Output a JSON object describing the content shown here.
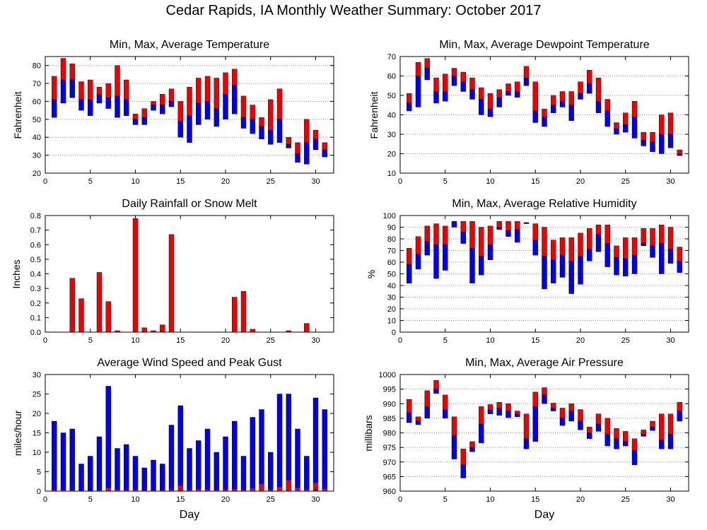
{
  "page": {
    "title": "Cedar Rapids, IA Monthly Weather Summary: October 2017"
  },
  "colors": {
    "red": "#ee0000",
    "blue": "#0000ee",
    "grid": "#999999"
  },
  "chart_data": [
    {
      "id": "temp",
      "type": "bar",
      "style": "range",
      "title": "Min, Max, Average Temperature",
      "xlabel": "",
      "ylabel": "Fahrenheit",
      "xlim": [
        0,
        32
      ],
      "ylim": [
        20,
        85
      ],
      "xticks": [
        0,
        5,
        10,
        15,
        20,
        25,
        30
      ],
      "yticks": [
        20,
        30,
        40,
        50,
        60,
        70,
        80
      ],
      "grid": true,
      "x": [
        1,
        2,
        3,
        4,
        5,
        6,
        7,
        8,
        9,
        10,
        11,
        12,
        13,
        14,
        15,
        16,
        17,
        18,
        19,
        20,
        21,
        22,
        23,
        24,
        25,
        26,
        27,
        28,
        29,
        30,
        31
      ],
      "min": [
        51,
        59,
        62,
        55,
        52,
        59,
        56,
        51,
        52,
        47,
        47,
        55,
        53,
        57,
        40,
        37,
        47,
        50,
        46,
        50,
        53,
        45,
        42,
        39,
        36,
        37,
        34,
        26,
        25,
        33,
        29
      ],
      "avg": [
        61,
        72,
        72,
        61,
        61,
        64,
        62,
        63,
        61,
        50,
        51,
        58,
        58,
        60,
        49,
        52,
        59,
        60,
        56,
        64,
        69,
        51,
        50,
        46,
        44,
        50,
        36,
        31,
        37,
        39,
        33
      ],
      "max": [
        74,
        84,
        81,
        71,
        72,
        68,
        70,
        80,
        72,
        53,
        56,
        60,
        64,
        67,
        60,
        68,
        73,
        74,
        73,
        76,
        78,
        63,
        58,
        51,
        61,
        67,
        40,
        37,
        50,
        44,
        37
      ]
    },
    {
      "id": "dewpoint",
      "type": "bar",
      "style": "range",
      "title": "Min, Max, Average Dewpoint Temperature",
      "xlabel": "",
      "ylabel": "Fahrenheit",
      "xlim": [
        0,
        32
      ],
      "ylim": [
        10,
        70
      ],
      "xticks": [
        0,
        5,
        10,
        15,
        20,
        25,
        30
      ],
      "yticks": [
        10,
        20,
        30,
        40,
        50,
        60,
        70
      ],
      "grid": true,
      "x": [
        1,
        2,
        3,
        4,
        5,
        6,
        7,
        8,
        9,
        10,
        11,
        12,
        13,
        14,
        15,
        16,
        17,
        18,
        19,
        20,
        21,
        22,
        23,
        24,
        25,
        26,
        27,
        28,
        29,
        30,
        31
      ],
      "min": [
        42,
        44,
        58,
        46,
        47,
        55,
        52,
        48,
        40,
        39,
        44,
        50,
        49,
        55,
        36,
        34,
        41,
        44,
        37,
        48,
        51,
        41,
        34,
        30,
        31,
        28,
        24,
        21,
        20,
        23,
        19
      ],
      "avg": [
        46,
        60,
        64,
        52,
        52,
        60,
        57,
        53,
        48,
        43,
        49,
        52,
        52,
        59,
        42,
        39,
        45,
        47,
        45,
        51,
        56,
        47,
        42,
        33,
        35,
        39,
        27,
        26,
        30,
        30,
        20
      ],
      "max": [
        51,
        67,
        69,
        59,
        61,
        64,
        62,
        59,
        54,
        51,
        53,
        56,
        57,
        65,
        57,
        43,
        50,
        52,
        52,
        57,
        63,
        59,
        48,
        36,
        41,
        47,
        31,
        31,
        40,
        41,
        22
      ]
    },
    {
      "id": "rain",
      "type": "bar",
      "style": "single",
      "title": "Daily Rainfall or Snow Melt",
      "xlabel": "",
      "ylabel": "Inches",
      "xlim": [
        0,
        32
      ],
      "ylim": [
        0,
        0.8
      ],
      "xticks": [
        0,
        5,
        10,
        15,
        20,
        25,
        30
      ],
      "yticks": [
        0,
        0.1,
        0.2,
        0.3,
        0.4,
        0.5,
        0.6,
        0.7,
        0.8
      ],
      "yticklabels": [
        "0.0",
        "0.1",
        "0.2",
        "0.3",
        "0.4",
        "0.5",
        "0.6",
        "0.7",
        "0.8"
      ],
      "grid": false,
      "x": [
        1,
        2,
        3,
        4,
        5,
        6,
        7,
        8,
        9,
        10,
        11,
        12,
        13,
        14,
        15,
        16,
        17,
        18,
        19,
        20,
        21,
        22,
        23,
        24,
        25,
        26,
        27,
        28,
        29,
        30,
        31
      ],
      "values": [
        0,
        0,
        0.37,
        0.23,
        0,
        0.41,
        0.21,
        0.01,
        0,
        0.78,
        0.03,
        0.01,
        0.05,
        0.67,
        0,
        0,
        0,
        0,
        0,
        0,
        0.24,
        0.28,
        0.02,
        0,
        0,
        0,
        0.01,
        0,
        0.06,
        0,
        0
      ]
    },
    {
      "id": "humidity",
      "type": "bar",
      "style": "range",
      "title": "Min, Max, Average Relative Humidity",
      "xlabel": "",
      "ylabel": "%",
      "xlim": [
        0,
        32
      ],
      "ylim": [
        0,
        100
      ],
      "xticks": [
        0,
        5,
        10,
        15,
        20,
        25,
        30
      ],
      "yticks": [
        0,
        10,
        20,
        30,
        40,
        50,
        60,
        70,
        80,
        90,
        100
      ],
      "grid": true,
      "x": [
        1,
        2,
        3,
        4,
        5,
        6,
        7,
        8,
        9,
        10,
        11,
        12,
        13,
        14,
        15,
        16,
        17,
        18,
        19,
        20,
        21,
        22,
        23,
        24,
        25,
        26,
        27,
        28,
        29,
        30,
        31
      ],
      "min": [
        42,
        54,
        66,
        46,
        53,
        90,
        76,
        42,
        49,
        62,
        88,
        82,
        77,
        93,
        66,
        37,
        42,
        47,
        33,
        41,
        61,
        69,
        56,
        49,
        48,
        50,
        74,
        64,
        50,
        59,
        51
      ],
      "avg": [
        58,
        67,
        78,
        75,
        75,
        95,
        86,
        72,
        65,
        75,
        90,
        87,
        88,
        94,
        79,
        65,
        62,
        66,
        61,
        65,
        71,
        84,
        76,
        64,
        63,
        66,
        76,
        74,
        76,
        71,
        61
      ],
      "max": [
        72,
        82,
        91,
        93,
        91,
        95,
        95,
        95,
        90,
        91,
        95,
        95,
        95,
        94,
        93,
        90,
        79,
        81,
        81,
        85,
        89,
        92,
        92,
        74,
        81,
        81,
        89,
        89,
        92,
        90,
        73
      ]
    },
    {
      "id": "wind",
      "type": "bar",
      "style": "wind",
      "title": "Average Wind Speed and Peak Gust",
      "xlabel": "Day",
      "ylabel": "miles/hour",
      "xlim": [
        0,
        32
      ],
      "ylim": [
        0,
        30
      ],
      "xticks": [
        0,
        5,
        10,
        15,
        20,
        25,
        30
      ],
      "yticks": [
        0,
        5,
        10,
        15,
        20,
        25,
        30
      ],
      "grid": false,
      "x": [
        1,
        2,
        3,
        4,
        5,
        6,
        7,
        8,
        9,
        10,
        11,
        12,
        13,
        14,
        15,
        16,
        17,
        18,
        19,
        20,
        21,
        22,
        23,
        24,
        25,
        26,
        27,
        28,
        29,
        30,
        31
      ],
      "gust": [
        18,
        15,
        16,
        7,
        9,
        14,
        27,
        11,
        12,
        9,
        6,
        8,
        7,
        17,
        22,
        11,
        13,
        16,
        10,
        14,
        18,
        9,
        19,
        21,
        10,
        25,
        25,
        16,
        9,
        24,
        21
      ],
      "avg_speed": [
        0.3,
        0.3,
        0.3,
        0.1,
        0.1,
        0.2,
        0.8,
        0.4,
        0.3,
        0.4,
        0.2,
        0.2,
        0.2,
        0.4,
        1.4,
        0.3,
        0.5,
        0.4,
        0.3,
        0.5,
        0.5,
        0.3,
        0.7,
        1.8,
        0.5,
        1.0,
        2.8,
        0.8,
        0.4,
        2.1,
        0.6
      ]
    },
    {
      "id": "pressure",
      "type": "bar",
      "style": "range",
      "title": "Min, Max, Average Air Pressure",
      "xlabel": "Day",
      "ylabel": "millibars",
      "xlim": [
        0,
        32
      ],
      "ylim": [
        960,
        1000
      ],
      "xticks": [
        0,
        5,
        10,
        15,
        20,
        25,
        30
      ],
      "yticks": [
        960,
        965,
        970,
        975,
        980,
        985,
        990,
        995,
        1000
      ],
      "grid": true,
      "x": [
        1,
        2,
        3,
        4,
        5,
        6,
        7,
        8,
        9,
        10,
        11,
        12,
        13,
        14,
        15,
        16,
        17,
        18,
        19,
        20,
        21,
        22,
        23,
        24,
        25,
        26,
        27,
        28,
        29,
        30,
        31
      ],
      "min": [
        983.5,
        982.8,
        985,
        993.5,
        985,
        971,
        964.5,
        973.5,
        976.5,
        986.5,
        986,
        985.2,
        985.5,
        974.5,
        977,
        990,
        987.5,
        982.5,
        984,
        981,
        978,
        980.5,
        975.5,
        974.5,
        975.5,
        969,
        978.8,
        980.8,
        974.5,
        974.5,
        984
      ],
      "avg": [
        987,
        984,
        989,
        995,
        988,
        979,
        969,
        975,
        983,
        988,
        988.5,
        987.5,
        986.5,
        978,
        989,
        993,
        988.5,
        985,
        987.5,
        984,
        980,
        983,
        979.5,
        978,
        977,
        974,
        979.5,
        982,
        977.5,
        979.5,
        987.5
      ],
      "max": [
        991.5,
        985.5,
        994.5,
        998,
        993,
        985.5,
        974.5,
        977,
        989,
        989.7,
        990.5,
        990,
        987.5,
        986.5,
        994,
        995.5,
        990.2,
        988.5,
        990,
        988,
        982,
        986.5,
        985,
        981.5,
        980.5,
        978,
        981,
        984,
        986.5,
        986.5,
        990.5
      ]
    }
  ]
}
